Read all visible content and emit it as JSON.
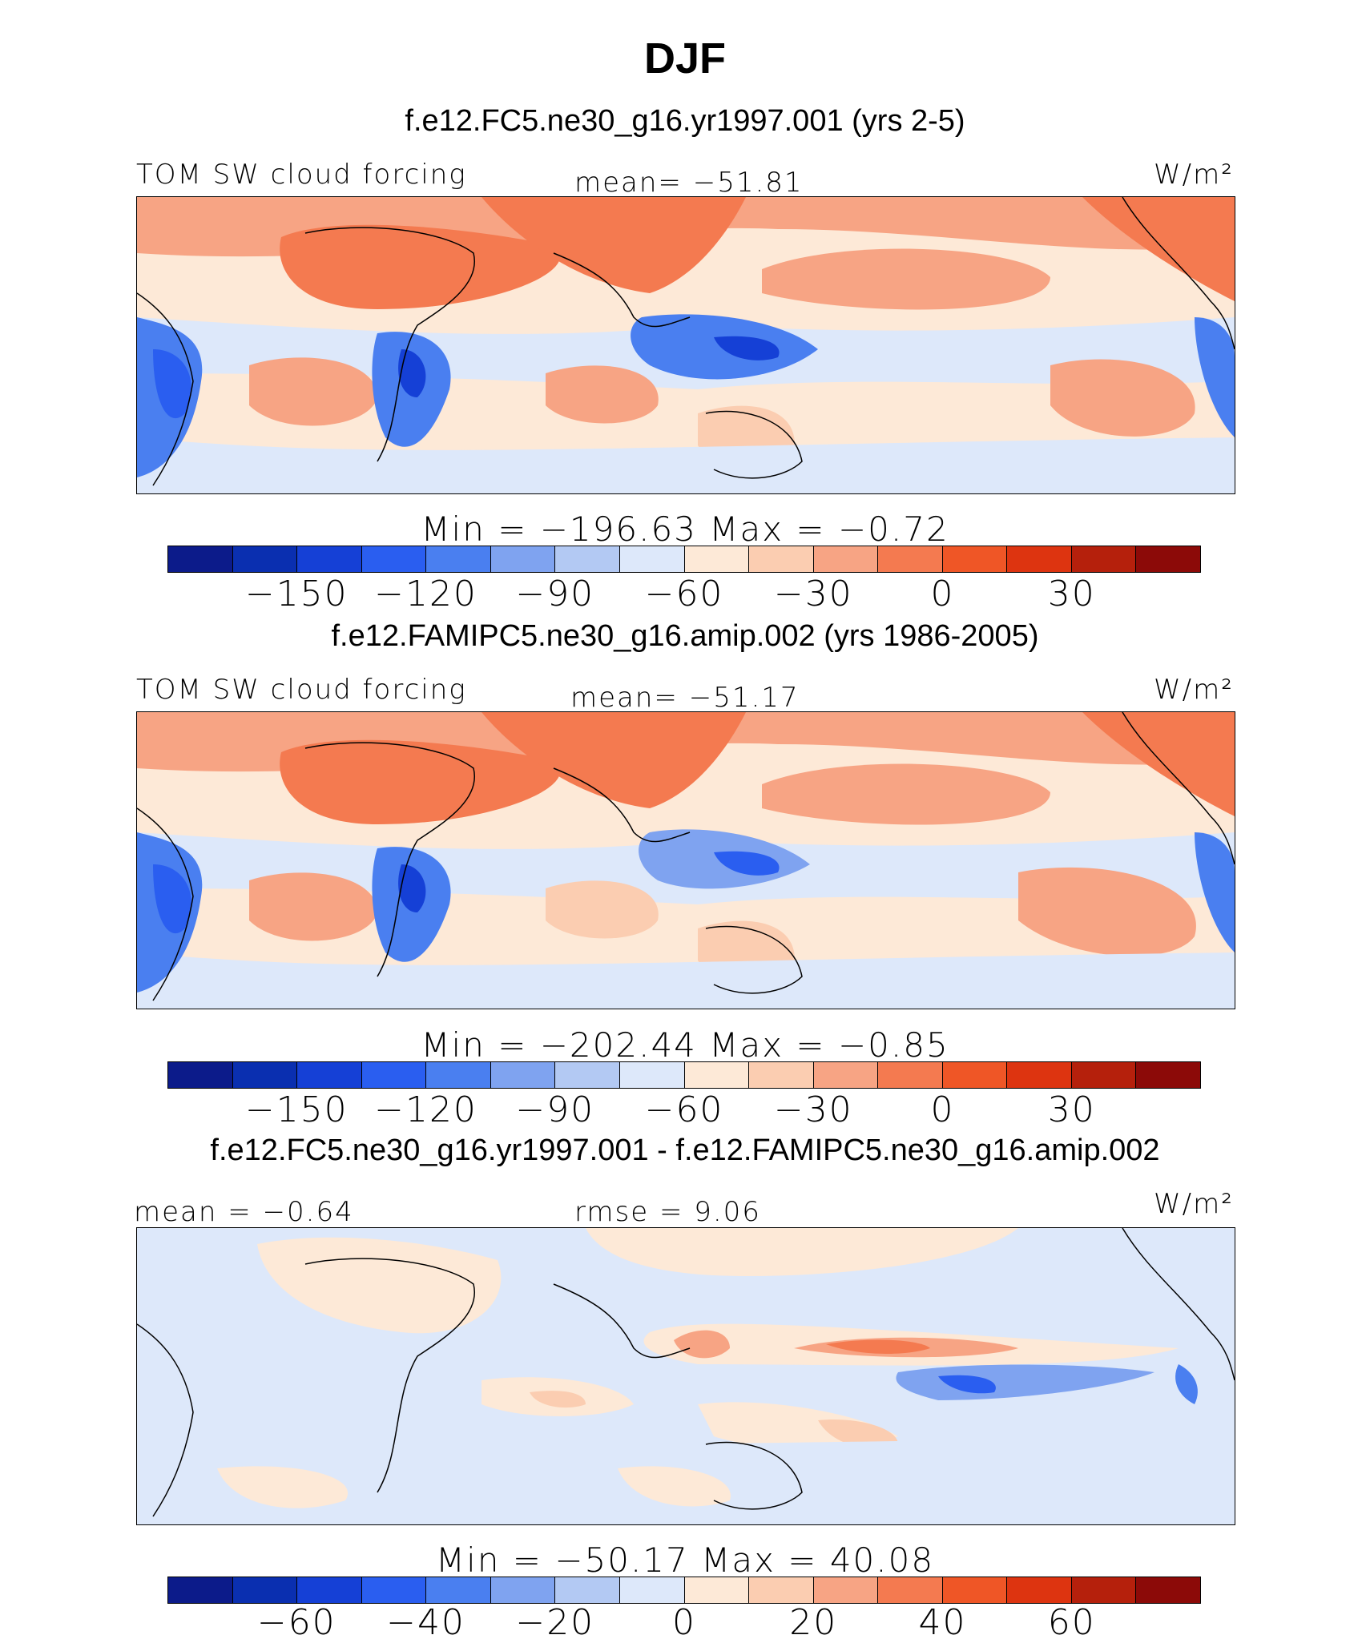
{
  "page_title": "DJF",
  "panels": [
    {
      "case": "f.e12.FC5.ne30_g16.yr1997.001 (yrs 2-5)",
      "variable": "TOM SW cloud forcing",
      "stat": "mean=  −51.81",
      "units": "W/m²",
      "minmax": "Min  =  −196.63  Max  =    −0.72",
      "ticks": [
        "−150",
        "−120",
        "−90",
        "−60",
        "−30",
        "0",
        "30"
      ],
      "kind": "abs"
    },
    {
      "case": "f.e12.FAMIPC5.ne30_g16.amip.002 (yrs 1986-2005)",
      "variable": "TOM SW cloud forcing",
      "stat": "mean=  −51.17",
      "units": "W/m²",
      "minmax": "Min  =  −202.44  Max  =    −0.85",
      "ticks": [
        "−150",
        "−120",
        "−90",
        "−60",
        "−30",
        "0",
        "30"
      ],
      "kind": "abs"
    },
    {
      "case": "f.e12.FC5.ne30_g16.yr1997.001 - f.e12.FAMIPC5.ne30_g16.amip.002",
      "variable": "mean  =   −0.64",
      "stat": "rmse  =    9.06",
      "units": "W/m²",
      "minmax": "Min  =  −50.17  Max  =   40.08",
      "ticks": [
        "−60",
        "−40",
        "−20",
        "0",
        "20",
        "40",
        "60"
      ],
      "kind": "diff"
    }
  ],
  "colorbar_colors": [
    "#0c1b8a",
    "#0a2fb0",
    "#1540d6",
    "#2a5ef0",
    "#4a7ff0",
    "#7fa3f0",
    "#b3c9f3",
    "#dde8fa",
    "#fde9d7",
    "#fbcdb1",
    "#f7a484",
    "#f47a50",
    "#ef5626",
    "#dd3410",
    "#b5200c",
    "#8c0a08"
  ],
  "map_colors": {
    "ocean_light_blue": "#dde8fa",
    "mid_blue": "#7fa3f0",
    "deep_blue": "#2a5ef0",
    "light_peach": "#fde9d7",
    "salmon": "#f7a484",
    "orange": "#f47a50"
  }
}
